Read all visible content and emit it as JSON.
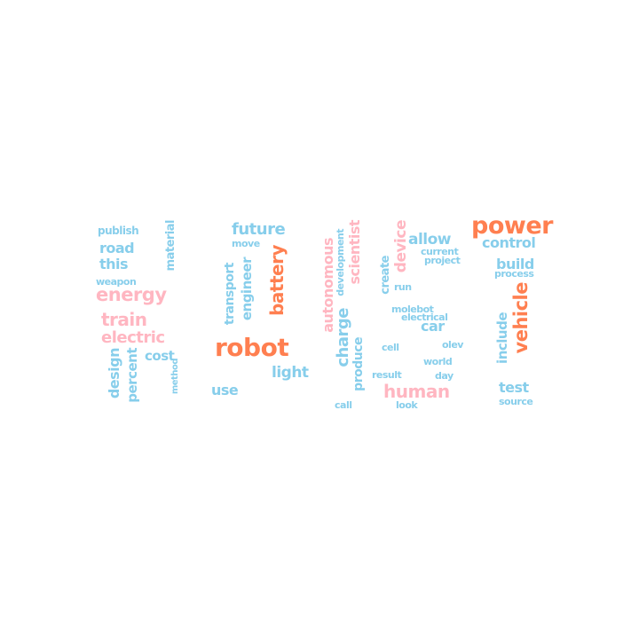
{
  "colors": {
    "blue": "#87CEEB",
    "pink": "#FFB6C1",
    "orange": "#FF7F50"
  },
  "words": [
    {
      "text": "publish",
      "color": "blue",
      "vertical": false
    },
    {
      "text": "road",
      "color": "blue",
      "vertical": false
    },
    {
      "text": "this",
      "color": "blue",
      "vertical": false
    },
    {
      "text": "weapon",
      "color": "blue",
      "vertical": false
    },
    {
      "text": "energy",
      "color": "pink",
      "vertical": false
    },
    {
      "text": "train",
      "color": "pink",
      "vertical": false
    },
    {
      "text": "electric",
      "color": "pink",
      "vertical": false
    },
    {
      "text": "material",
      "color": "blue",
      "vertical": true
    },
    {
      "text": "design",
      "color": "blue",
      "vertical": true
    },
    {
      "text": "percent",
      "color": "blue",
      "vertical": true
    },
    {
      "text": "cost",
      "color": "blue",
      "vertical": false
    },
    {
      "text": "method",
      "color": "blue",
      "vertical": true
    },
    {
      "text": "future",
      "color": "blue",
      "vertical": false
    },
    {
      "text": "move",
      "color": "blue",
      "vertical": false
    },
    {
      "text": "transport",
      "color": "blue",
      "vertical": true
    },
    {
      "text": "engineer",
      "color": "blue",
      "vertical": true
    },
    {
      "text": "battery",
      "color": "orange",
      "vertical": true
    },
    {
      "text": "robot",
      "color": "orange",
      "vertical": false
    },
    {
      "text": "light",
      "color": "blue",
      "vertical": false
    },
    {
      "text": "use",
      "color": "blue",
      "vertical": false
    },
    {
      "text": "autonomous",
      "color": "pink",
      "vertical": true
    },
    {
      "text": "development",
      "color": "blue",
      "vertical": true
    },
    {
      "text": "scientist",
      "color": "pink",
      "vertical": true
    },
    {
      "text": "charge",
      "color": "blue",
      "vertical": true
    },
    {
      "text": "produce",
      "color": "blue",
      "vertical": true
    },
    {
      "text": "call",
      "color": "blue",
      "vertical": false
    },
    {
      "text": "create",
      "color": "blue",
      "vertical": true
    },
    {
      "text": "device",
      "color": "pink",
      "vertical": true
    },
    {
      "text": "run",
      "color": "blue",
      "vertical": false
    },
    {
      "text": "allow",
      "color": "blue",
      "vertical": false
    },
    {
      "text": "current",
      "color": "blue",
      "vertical": false
    },
    {
      "text": "project",
      "color": "blue",
      "vertical": false
    },
    {
      "text": "molebot",
      "color": "blue",
      "vertical": false
    },
    {
      "text": "electrical",
      "color": "blue",
      "vertical": false
    },
    {
      "text": "car",
      "color": "blue",
      "vertical": false
    },
    {
      "text": "cell",
      "color": "blue",
      "vertical": false
    },
    {
      "text": "olev",
      "color": "blue",
      "vertical": false
    },
    {
      "text": "world",
      "color": "blue",
      "vertical": false
    },
    {
      "text": "result",
      "color": "blue",
      "vertical": false
    },
    {
      "text": "day",
      "color": "blue",
      "vertical": false
    },
    {
      "text": "human",
      "color": "pink",
      "vertical": false
    },
    {
      "text": "look",
      "color": "blue",
      "vertical": false
    },
    {
      "text": "power",
      "color": "orange",
      "vertical": false
    },
    {
      "text": "control",
      "color": "blue",
      "vertical": false
    },
    {
      "text": "build",
      "color": "blue",
      "vertical": false
    },
    {
      "text": "process",
      "color": "blue",
      "vertical": false
    },
    {
      "text": "include",
      "color": "blue",
      "vertical": true
    },
    {
      "text": "vehicle",
      "color": "orange",
      "vertical": true
    },
    {
      "text": "test",
      "color": "blue",
      "vertical": false
    },
    {
      "text": "source",
      "color": "blue",
      "vertical": false
    }
  ]
}
